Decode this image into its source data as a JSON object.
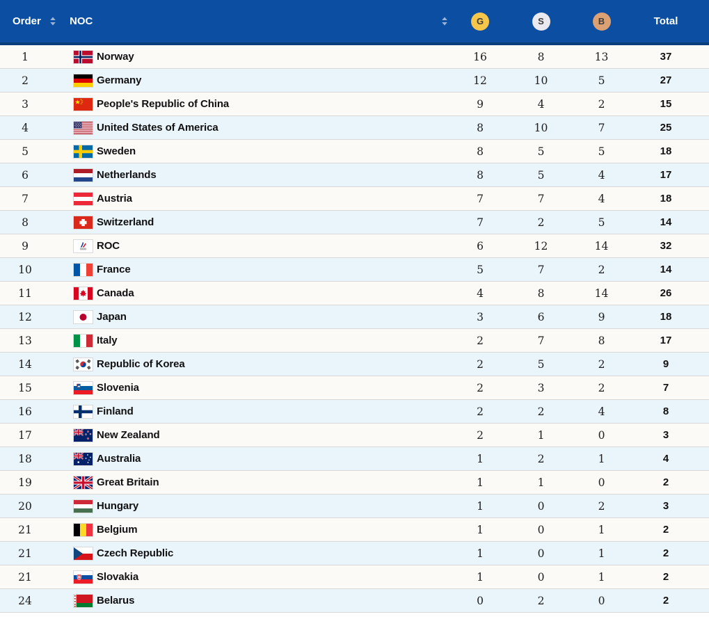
{
  "table": {
    "columns": {
      "order": "Order",
      "noc": "NOC",
      "gold": "G",
      "silver": "S",
      "bronze": "B",
      "total": "Total"
    },
    "sortable_columns": [
      "order",
      "noc"
    ],
    "rows": [
      {
        "order": "1",
        "noc": "Norway",
        "flag": "norway",
        "gold": "16",
        "silver": "8",
        "bronze": "13",
        "total": "37"
      },
      {
        "order": "2",
        "noc": "Germany",
        "flag": "germany",
        "gold": "12",
        "silver": "10",
        "bronze": "5",
        "total": "27"
      },
      {
        "order": "3",
        "noc": "People's Republic of China",
        "flag": "china",
        "gold": "9",
        "silver": "4",
        "bronze": "2",
        "total": "15"
      },
      {
        "order": "4",
        "noc": "United States of America",
        "flag": "usa",
        "gold": "8",
        "silver": "10",
        "bronze": "7",
        "total": "25"
      },
      {
        "order": "5",
        "noc": "Sweden",
        "flag": "sweden",
        "gold": "8",
        "silver": "5",
        "bronze": "5",
        "total": "18"
      },
      {
        "order": "6",
        "noc": "Netherlands",
        "flag": "netherlands",
        "gold": "8",
        "silver": "5",
        "bronze": "4",
        "total": "17"
      },
      {
        "order": "7",
        "noc": "Austria",
        "flag": "austria",
        "gold": "7",
        "silver": "7",
        "bronze": "4",
        "total": "18"
      },
      {
        "order": "8",
        "noc": "Switzerland",
        "flag": "switzerland",
        "gold": "7",
        "silver": "2",
        "bronze": "5",
        "total": "14"
      },
      {
        "order": "9",
        "noc": "ROC",
        "flag": "roc",
        "gold": "6",
        "silver": "12",
        "bronze": "14",
        "total": "32"
      },
      {
        "order": "10",
        "noc": "France",
        "flag": "france",
        "gold": "5",
        "silver": "7",
        "bronze": "2",
        "total": "14"
      },
      {
        "order": "11",
        "noc": "Canada",
        "flag": "canada",
        "gold": "4",
        "silver": "8",
        "bronze": "14",
        "total": "26"
      },
      {
        "order": "12",
        "noc": "Japan",
        "flag": "japan",
        "gold": "3",
        "silver": "6",
        "bronze": "9",
        "total": "18"
      },
      {
        "order": "13",
        "noc": "Italy",
        "flag": "italy",
        "gold": "2",
        "silver": "7",
        "bronze": "8",
        "total": "17"
      },
      {
        "order": "14",
        "noc": "Republic of Korea",
        "flag": "korea",
        "gold": "2",
        "silver": "5",
        "bronze": "2",
        "total": "9"
      },
      {
        "order": "15",
        "noc": "Slovenia",
        "flag": "slovenia",
        "gold": "2",
        "silver": "3",
        "bronze": "2",
        "total": "7"
      },
      {
        "order": "16",
        "noc": "Finland",
        "flag": "finland",
        "gold": "2",
        "silver": "2",
        "bronze": "4",
        "total": "8"
      },
      {
        "order": "17",
        "noc": "New Zealand",
        "flag": "newzealand",
        "gold": "2",
        "silver": "1",
        "bronze": "0",
        "total": "3"
      },
      {
        "order": "18",
        "noc": "Australia",
        "flag": "australia",
        "gold": "1",
        "silver": "2",
        "bronze": "1",
        "total": "4"
      },
      {
        "order": "19",
        "noc": "Great Britain",
        "flag": "greatbritain",
        "gold": "1",
        "silver": "1",
        "bronze": "0",
        "total": "2"
      },
      {
        "order": "20",
        "noc": "Hungary",
        "flag": "hungary",
        "gold": "1",
        "silver": "0",
        "bronze": "2",
        "total": "3"
      },
      {
        "order": "21",
        "noc": "Belgium",
        "flag": "belgium",
        "gold": "1",
        "silver": "0",
        "bronze": "1",
        "total": "2"
      },
      {
        "order": "21",
        "noc": "Czech Republic",
        "flag": "czech",
        "gold": "1",
        "silver": "0",
        "bronze": "1",
        "total": "2"
      },
      {
        "order": "21",
        "noc": "Slovakia",
        "flag": "slovakia",
        "gold": "1",
        "silver": "0",
        "bronze": "1",
        "total": "2"
      },
      {
        "order": "24",
        "noc": "Belarus",
        "flag": "belarus",
        "gold": "0",
        "silver": "2",
        "bronze": "0",
        "total": "2"
      }
    ]
  },
  "colors": {
    "header_bg": "#0b4ea2",
    "header_border": "#093d7c",
    "row_bg": "#fbfaf7",
    "row_alt_bg": "#e9f4fb",
    "separator": "#d8d8d8",
    "gold_badge": "#f6c64b",
    "silver_badge": "#e9e9ef",
    "bronze_badge": "#dca173",
    "sort_arrow": "#9db4d4"
  }
}
